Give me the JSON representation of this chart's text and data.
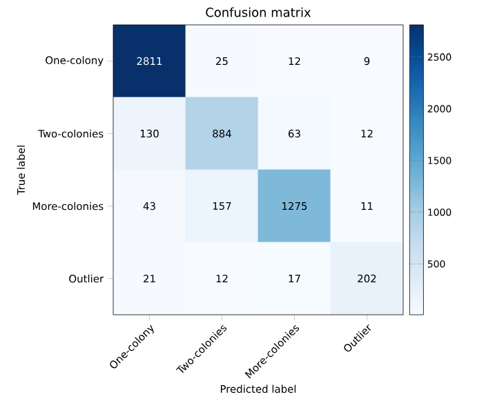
{
  "chart_data": {
    "type": "heatmap",
    "title": "Confusion matrix",
    "xlabel": "Predicted label",
    "ylabel": "True label",
    "categories": [
      "One-colony",
      "Two-colonies",
      "More-colonies",
      "Outlier"
    ],
    "y_categories": [
      "One-colony",
      "Two-colonies",
      "More-colonies",
      "Outlier"
    ],
    "cells": [
      [
        2811,
        25,
        12,
        9
      ],
      [
        130,
        884,
        63,
        12
      ],
      [
        43,
        157,
        1275,
        11
      ],
      [
        21,
        12,
        17,
        202
      ]
    ],
    "clim": [
      9,
      2811
    ],
    "cticks": [
      500,
      1000,
      1500,
      2000,
      2500
    ],
    "data_labels": true
  }
}
